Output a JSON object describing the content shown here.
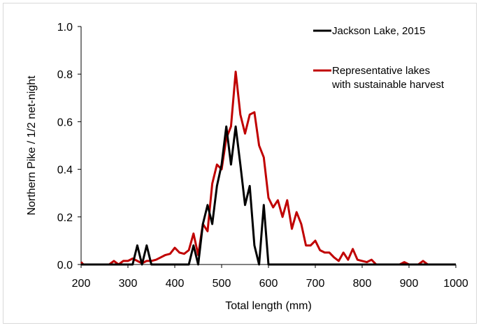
{
  "chart_data": {
    "type": "line",
    "xlabel": "Total length (mm)",
    "ylabel": "Northern Pike / 1/2 net-night",
    "xlim": [
      200,
      1000
    ],
    "ylim": [
      0,
      1.0
    ],
    "xticks": [
      "200",
      "300",
      "400",
      "500",
      "600",
      "700",
      "800",
      "900",
      "1000"
    ],
    "yticks": [
      "0.0",
      "0.2",
      "0.4",
      "0.6",
      "0.8",
      "1.0"
    ],
    "grid": false,
    "legend_position": "top-right",
    "series": [
      {
        "name": "Jackson Lake, 2015",
        "color": "#000000",
        "x": [
          200,
          310,
          320,
          330,
          340,
          350,
          430,
          440,
          450,
          460,
          470,
          480,
          490,
          500,
          510,
          520,
          530,
          540,
          550,
          560,
          570,
          580,
          590,
          600,
          1000
        ],
        "y": [
          0.0,
          0.0,
          0.08,
          0.0,
          0.08,
          0.0,
          0.0,
          0.08,
          0.0,
          0.17,
          0.25,
          0.17,
          0.33,
          0.42,
          0.58,
          0.42,
          0.58,
          0.42,
          0.25,
          0.33,
          0.08,
          0.0,
          0.25,
          0.0,
          0.0
        ]
      },
      {
        "name": "Representative lakes with sustainable harvest",
        "color": "#c00000",
        "x": [
          200,
          205,
          210,
          260,
          270,
          280,
          290,
          300,
          310,
          320,
          330,
          340,
          350,
          360,
          370,
          380,
          390,
          400,
          410,
          420,
          430,
          440,
          450,
          460,
          470,
          480,
          490,
          500,
          510,
          520,
          530,
          540,
          550,
          560,
          570,
          580,
          590,
          600,
          610,
          620,
          630,
          640,
          650,
          660,
          670,
          680,
          690,
          700,
          710,
          720,
          730,
          740,
          750,
          760,
          770,
          780,
          790,
          800,
          810,
          820,
          830,
          840,
          850,
          860,
          870,
          880,
          890,
          900,
          910,
          920,
          930,
          940,
          950,
          1000
        ],
        "y": [
          0.01,
          0.0,
          0.0,
          0.0,
          0.015,
          0.0,
          0.015,
          0.015,
          0.025,
          0.015,
          0.005,
          0.015,
          0.015,
          0.02,
          0.03,
          0.04,
          0.045,
          0.07,
          0.05,
          0.045,
          0.06,
          0.13,
          0.04,
          0.17,
          0.14,
          0.34,
          0.42,
          0.4,
          0.53,
          0.58,
          0.81,
          0.63,
          0.55,
          0.63,
          0.64,
          0.5,
          0.45,
          0.28,
          0.24,
          0.27,
          0.2,
          0.27,
          0.15,
          0.22,
          0.17,
          0.08,
          0.08,
          0.1,
          0.06,
          0.05,
          0.05,
          0.03,
          0.015,
          0.05,
          0.02,
          0.065,
          0.02,
          0.015,
          0.01,
          0.02,
          0.0,
          0.0,
          0.0,
          0.0,
          0.0,
          0.0,
          0.01,
          0.0,
          0.0,
          0.0,
          0.015,
          0.0,
          0.0,
          0.0
        ]
      }
    ],
    "legend": [
      {
        "lines": [
          "Jackson Lake, 2015"
        ],
        "color": "#000000"
      },
      {
        "lines": [
          "Representative lakes",
          "with sustainable harvest"
        ],
        "color": "#c00000"
      }
    ]
  }
}
